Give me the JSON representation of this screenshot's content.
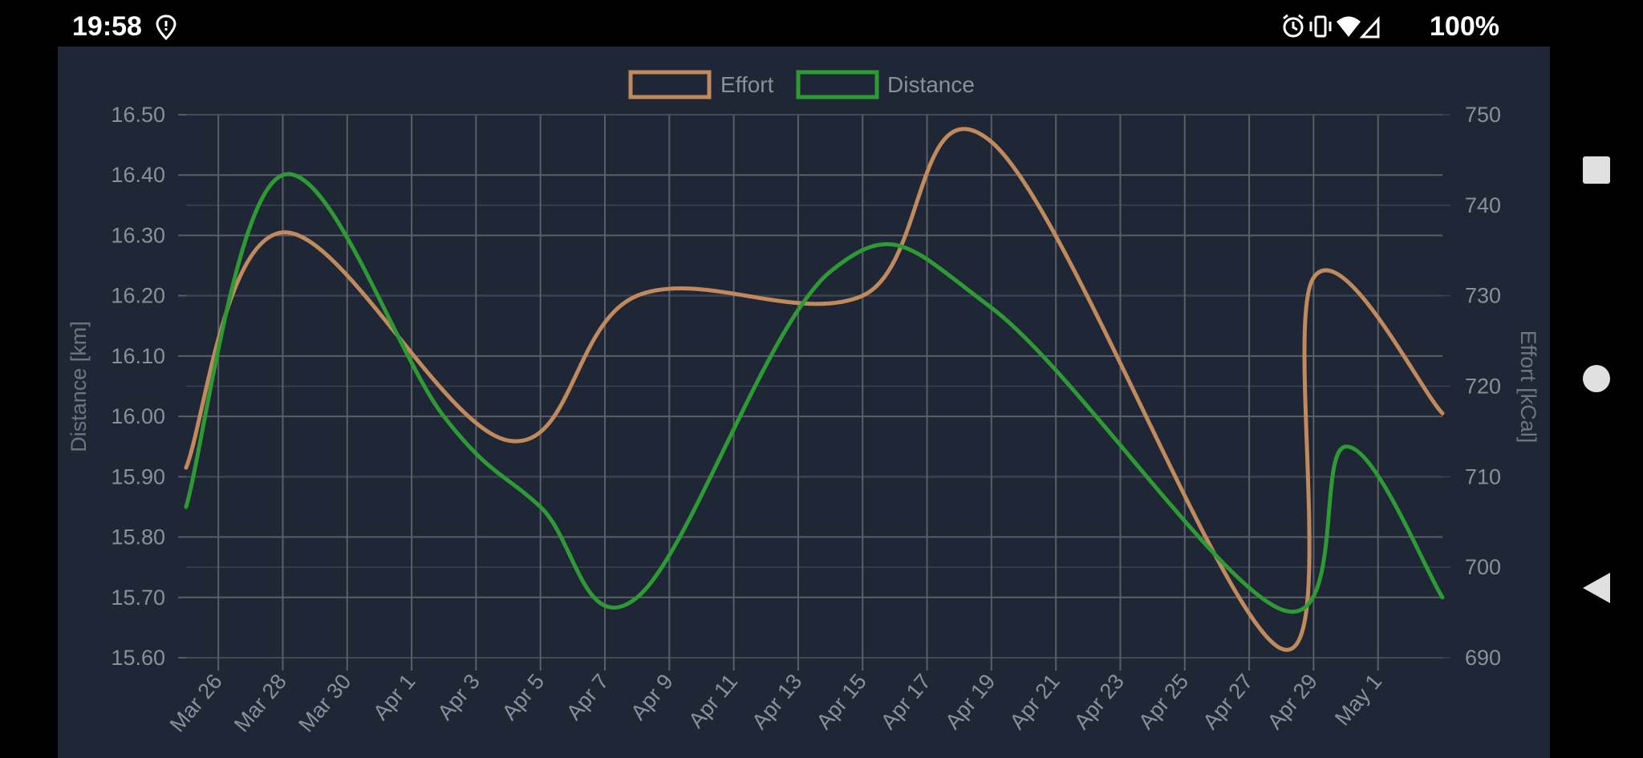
{
  "status_bar": {
    "time": "19:58",
    "battery": "100%",
    "icons": [
      "location-pin-icon",
      "alarm-icon",
      "vibrate-icon",
      "wifi-icon",
      "signal-icon"
    ]
  },
  "nav": {
    "buttons": [
      "recents-square-icon",
      "home-circle-icon",
      "back-triangle-icon"
    ]
  },
  "colors": {
    "background": "#1f2736",
    "grid": "#5a5f66",
    "effort": "#c08a5c",
    "distance": "#2e9a34",
    "text": "#8a8f98"
  },
  "chart_data": {
    "type": "line",
    "legend": [
      {
        "name": "Effort",
        "color": "#c08a5c"
      },
      {
        "name": "Distance",
        "color": "#2e9a34"
      }
    ],
    "legend_position": "top-center",
    "grid": true,
    "x_tick_labels": [
      "Mar 26",
      "Mar 28",
      "Mar 30",
      "Apr 1",
      "Apr 3",
      "Apr 5",
      "Apr 7",
      "Apr 9",
      "Apr 11",
      "Apr 13",
      "Apr 15",
      "Apr 17",
      "Apr 19",
      "Apr 21",
      "Apr 23",
      "Apr 25",
      "Apr 27",
      "Apr 29",
      "May 1"
    ],
    "x_range": [
      "2024-03-25",
      "2024-05-03"
    ],
    "y_left": {
      "label": "Distance [km]",
      "range": [
        15.6,
        16.5
      ],
      "tick_labels": [
        "16.50",
        "16.40",
        "16.30",
        "16.20",
        "16.10",
        "16.00",
        "15.90",
        "15.80",
        "15.70",
        "15.60"
      ]
    },
    "y_right": {
      "label": "Effort [kCal]",
      "range": [
        690,
        750
      ],
      "tick_labels": [
        "750",
        "740",
        "730",
        "720",
        "710",
        "700",
        "690"
      ]
    },
    "series": [
      {
        "name": "Effort",
        "axis": "right",
        "color": "#c08a5c",
        "points": [
          {
            "x": "2024-03-25",
            "y": 711
          },
          {
            "x": "2024-03-28",
            "y": 737
          },
          {
            "x": "2024-04-04",
            "y": 714
          },
          {
            "x": "2024-04-08",
            "y": 730
          },
          {
            "x": "2024-04-15",
            "y": 730
          },
          {
            "x": "2024-04-19",
            "y": 747
          },
          {
            "x": "2024-04-28",
            "y": 691
          },
          {
            "x": "2024-04-29",
            "y": 732
          },
          {
            "x": "2024-05-03",
            "y": 717
          }
        ]
      },
      {
        "name": "Distance",
        "axis": "left",
        "color": "#2e9a34",
        "points": [
          {
            "x": "2024-03-25",
            "y": 15.85
          },
          {
            "x": "2024-03-28",
            "y": 16.4
          },
          {
            "x": "2024-04-02",
            "y": 16.0
          },
          {
            "x": "2024-04-05",
            "y": 15.85
          },
          {
            "x": "2024-04-08",
            "y": 15.7
          },
          {
            "x": "2024-04-14",
            "y": 16.24
          },
          {
            "x": "2024-04-19",
            "y": 16.18
          },
          {
            "x": "2024-04-28",
            "y": 15.68
          },
          {
            "x": "2024-04-30",
            "y": 15.95
          },
          {
            "x": "2024-05-03",
            "y": 15.7
          }
        ]
      }
    ]
  }
}
